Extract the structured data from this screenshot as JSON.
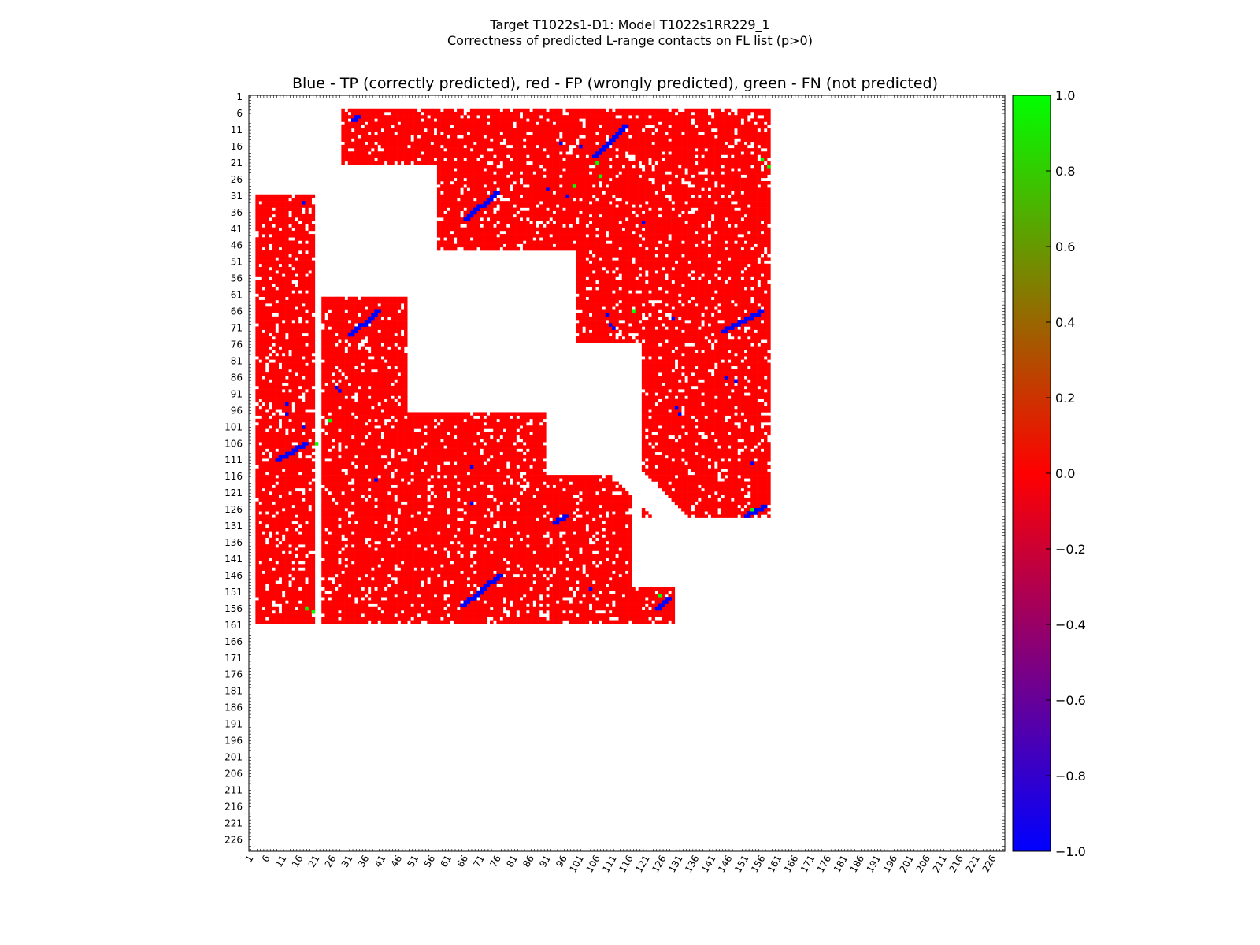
{
  "figure": {
    "title_line1": "Target T1022s1-D1: Model T1022s1RR229_1",
    "title_line2": "Correctness of predicted L-range contacts on FL list (p>0)"
  },
  "chart_data": {
    "type": "heatmap",
    "title": "Blue - TP (correctly predicted), red - FP (wrongly predicted), green - FN (not predicted)",
    "axis_range": [
      1,
      229
    ],
    "x_ticks": [
      1,
      6,
      11,
      16,
      21,
      26,
      31,
      36,
      41,
      46,
      51,
      56,
      61,
      66,
      71,
      76,
      81,
      86,
      91,
      96,
      101,
      106,
      111,
      116,
      121,
      126,
      131,
      136,
      141,
      146,
      151,
      156,
      161,
      166,
      171,
      176,
      181,
      186,
      191,
      196,
      201,
      206,
      211,
      216,
      221,
      226
    ],
    "y_ticks": [
      1,
      6,
      11,
      16,
      21,
      26,
      31,
      36,
      41,
      46,
      51,
      56,
      61,
      66,
      71,
      76,
      81,
      86,
      91,
      96,
      101,
      106,
      111,
      116,
      121,
      126,
      131,
      136,
      141,
      146,
      151,
      156,
      161,
      166,
      171,
      176,
      181,
      186,
      191,
      196,
      201,
      206,
      211,
      216,
      221,
      226
    ],
    "colorbar": {
      "range": [
        -1.0,
        1.0
      ],
      "ticks": [
        "1.0",
        "0.8",
        "0.6",
        "0.4",
        "0.2",
        "0.0",
        "−0.2",
        "−0.4",
        "−0.6",
        "−0.8",
        "−1.0"
      ],
      "colors": [
        "#0000ff",
        "#ff0000",
        "#00ff00"
      ]
    },
    "legend": {
      "TP": {
        "value": -1.0,
        "color": "#0000ff"
      },
      "FP": {
        "value": 0.0,
        "color": "#ff0000"
      },
      "FN": {
        "value": 1.0,
        "color": "#00ff00"
      }
    },
    "fp_regions": [
      {
        "rows": [
          5,
          21
        ],
        "cols": [
          29,
          158
        ]
      },
      {
        "rows": [
          22,
          47
        ],
        "cols": [
          58,
          158
        ]
      },
      {
        "rows": [
          48,
          75
        ],
        "cols": [
          100,
          158
        ]
      },
      {
        "rows": [
          76,
          128
        ],
        "cols": [
          120,
          158
        ]
      },
      {
        "rows": [
          31,
          160
        ],
        "cols": [
          3,
          20
        ]
      },
      {
        "rows": [
          62,
          160
        ],
        "cols": [
          23,
          48
        ]
      },
      {
        "rows": [
          97,
          160
        ],
        "cols": [
          45,
          90
        ]
      },
      {
        "rows": [
          116,
          160
        ],
        "cols": [
          88,
          116
        ]
      },
      {
        "rows": [
          150,
          160
        ],
        "cols": [
          116,
          129
        ]
      }
    ],
    "tp_segments": [
      {
        "from": [
          8,
          32
        ],
        "to": [
          7,
          33
        ]
      },
      {
        "from": [
          19,
          105
        ],
        "to": [
          10,
          114
        ]
      },
      {
        "from": [
          38,
          66
        ],
        "to": [
          30,
          75
        ]
      },
      {
        "from": [
          72,
          144
        ],
        "to": [
          66,
          155
        ]
      },
      {
        "from": [
          128,
          151
        ],
        "to": [
          125,
          156
        ]
      },
      {
        "from": [
          73,
          31
        ],
        "to": [
          66,
          39
        ]
      },
      {
        "from": [
          111,
          9
        ],
        "to": [
          106,
          17
        ]
      },
      {
        "from": [
          155,
          65
        ],
        "to": [
          146,
          76
        ]
      },
      {
        "from": [
          156,
          124
        ],
        "to": [
          153,
          127
        ]
      },
      {
        "from": [
          130,
          93
        ],
        "to": [
          128,
          96
        ]
      }
    ],
    "tp_points": [
      [
        33,
        17
      ],
      [
        94,
        12
      ],
      [
        97,
        12
      ],
      [
        89,
        27
      ],
      [
        90,
        28
      ],
      [
        101,
        17
      ],
      [
        117,
        39
      ],
      [
        124,
        68
      ],
      [
        113,
        68
      ],
      [
        86,
        145
      ],
      [
        87,
        148
      ],
      [
        95,
        130
      ],
      [
        97,
        131
      ],
      [
        112,
        153
      ],
      [
        39,
        120
      ],
      [
        70,
        110
      ],
      [
        71,
        111
      ],
      [
        15,
        95
      ],
      [
        16,
        101
      ],
      [
        31,
        97
      ],
      [
        29,
        91
      ],
      [
        68,
        129
      ],
      [
        67,
        109
      ],
      [
        150,
        104
      ]
    ],
    "fn_points": [
      [
        21,
        106
      ],
      [
        20,
        156
      ],
      [
        22,
        158
      ],
      [
        106,
        21
      ],
      [
        99,
        25
      ],
      [
        157,
        20
      ],
      [
        156,
        18
      ],
      [
        28,
        99
      ],
      [
        66,
        117
      ],
      [
        126,
        153
      ],
      [
        152,
        125
      ],
      [
        25,
        107
      ]
    ]
  }
}
